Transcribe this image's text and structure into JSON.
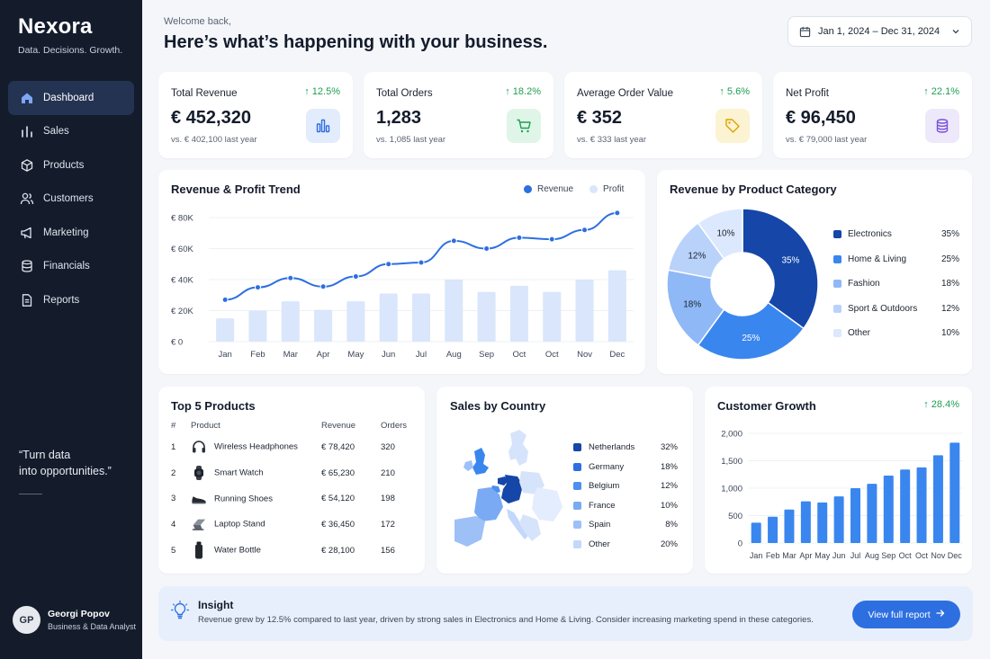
{
  "sidebar": {
    "brand": "Nexora",
    "tagline": "Data. Decisions. Growth.",
    "items": [
      {
        "label": "Dashboard",
        "icon": "home-icon",
        "active": true
      },
      {
        "label": "Sales",
        "icon": "bar-chart-icon"
      },
      {
        "label": "Products",
        "icon": "box-icon"
      },
      {
        "label": "Customers",
        "icon": "users-icon"
      },
      {
        "label": "Marketing",
        "icon": "megaphone-icon"
      },
      {
        "label": "Financials",
        "icon": "database-icon"
      },
      {
        "label": "Reports",
        "icon": "report-icon"
      }
    ],
    "quote_line1": "“Turn data",
    "quote_line2": "into opportunities.”",
    "user": {
      "initials": "GP",
      "name": "Georgi Popov",
      "role": "Business & Data Analyst"
    }
  },
  "header": {
    "welcome": "Welcome back,",
    "headline": "Here’s what’s happening with your business.",
    "date_range": "Jan 1, 2024 – Dec 31, 2024"
  },
  "kpis": [
    {
      "label": "Total Revenue",
      "delta": "↑ 12.5%",
      "value": "€ 452,320",
      "sub": "vs. € 402,100 last year",
      "icon": "bar-chart-icon",
      "icon_color": "#2d6fe0",
      "icon_bg": "#e3ecfc"
    },
    {
      "label": "Total Orders",
      "delta": "↑ 18.2%",
      "value": "1,283",
      "sub": "vs. 1,085 last year",
      "icon": "cart-icon",
      "icon_color": "#1f9d55",
      "icon_bg": "#dff5e8"
    },
    {
      "label": "Average Order Value",
      "delta": "↑ 5.6%",
      "value": "€ 352",
      "sub": "vs. € 333 last year",
      "icon": "tag-icon",
      "icon_color": "#d9a400",
      "icon_bg": "#fcf3d2"
    },
    {
      "label": "Net Profit",
      "delta": "↑ 22.1%",
      "value": "€ 96,450",
      "sub": "vs. € 79,000 last year",
      "icon": "database-icon",
      "icon_color": "#7a52d6",
      "icon_bg": "#eee8fb"
    }
  ],
  "trend": {
    "title": "Revenue & Profit Trend",
    "legend_revenue": "Revenue",
    "legend_profit": "Profit"
  },
  "category": {
    "title": "Revenue by Product Category",
    "items": [
      {
        "name": "Electronics",
        "pct": "35%",
        "color": "#1546a8"
      },
      {
        "name": "Home & Living",
        "pct": "25%",
        "color": "#3a86ef"
      },
      {
        "name": "Fashion",
        "pct": "18%",
        "color": "#8fb8f6"
      },
      {
        "name": "Sport & Outdoors",
        "pct": "12%",
        "color": "#b9d2fa"
      },
      {
        "name": "Other",
        "pct": "10%",
        "color": "#dce8fd"
      }
    ]
  },
  "top_products": {
    "title": "Top 5 Products",
    "headers": [
      "#",
      "Product",
      "Revenue",
      "Orders"
    ],
    "rows": [
      {
        "rank": "1",
        "name": "Wireless Headphones",
        "revenue": "€ 78,420",
        "orders": "320",
        "icon": "headphones-icon"
      },
      {
        "rank": "2",
        "name": "Smart Watch",
        "revenue": "€ 65,230",
        "orders": "210",
        "icon": "watch-icon"
      },
      {
        "rank": "3",
        "name": "Running Shoes",
        "revenue": "€ 54,120",
        "orders": "198",
        "icon": "shoe-icon"
      },
      {
        "rank": "4",
        "name": "Laptop Stand",
        "revenue": "€ 36,450",
        "orders": "172",
        "icon": "laptop-stand-icon"
      },
      {
        "rank": "5",
        "name": "Water Bottle",
        "revenue": "€ 28,100",
        "orders": "156",
        "icon": "bottle-icon"
      }
    ]
  },
  "country": {
    "title": "Sales by Country",
    "items": [
      {
        "name": "Netherlands",
        "pct": "32%",
        "color": "#1546a8"
      },
      {
        "name": "Germany",
        "pct": "18%",
        "color": "#2d6fe0"
      },
      {
        "name": "Belgium",
        "pct": "12%",
        "color": "#4c8ff0"
      },
      {
        "name": "France",
        "pct": "10%",
        "color": "#7aaaf3"
      },
      {
        "name": "Spain",
        "pct": "8%",
        "color": "#9dc0f7"
      },
      {
        "name": "Other",
        "pct": "20%",
        "color": "#c3d8fa"
      }
    ]
  },
  "customer_growth": {
    "title": "Customer Growth",
    "delta": "↑ 28.4%"
  },
  "insight": {
    "title": "Insight",
    "text": "Revenue grew by 12.5% compared to last year, driven by strong sales in Electronics and Home & Living. Consider increasing marketing spend in these categories.",
    "button": "View full report"
  },
  "colors": {
    "accent": "#2d6fe0",
    "positive": "#1f9d55",
    "sidebar_bg": "#141c2c",
    "revenue_line": "#2d6fe0",
    "profit_bar": "#d9e6fb",
    "growth_bar": "#3a86ef"
  },
  "chart_data": [
    {
      "type": "line",
      "title": "Revenue & Profit Trend",
      "categories": [
        "Jan",
        "Feb",
        "Mar",
        "Apr",
        "May",
        "Jun",
        "Jul",
        "Aug",
        "Sep",
        "Oct",
        "Oct",
        "Nov",
        "Dec"
      ],
      "ytick_labels": [
        "€ 0",
        "€ 20K",
        "€ 40K",
        "€ 60K",
        "€ 80K"
      ],
      "ylim": [
        0,
        80000
      ],
      "series": [
        {
          "name": "Revenue",
          "type": "line",
          "values": [
            27000,
            35000,
            41000,
            35500,
            42000,
            50000,
            51000,
            65000,
            60000,
            67000,
            66000,
            72000,
            83000
          ]
        },
        {
          "name": "Profit",
          "type": "bar",
          "values": [
            15000,
            20000,
            26000,
            20500,
            26000,
            31000,
            31000,
            40000,
            32000,
            36000,
            32000,
            40000,
            46000
          ]
        }
      ],
      "grid": true,
      "legend": "top-right"
    },
    {
      "type": "pie",
      "title": "Revenue by Product Category",
      "labels": [
        "Electronics",
        "Home & Living",
        "Fashion",
        "Sport & Outdoors",
        "Other"
      ],
      "values": [
        35,
        25,
        18,
        12,
        10
      ],
      "slice_labels": [
        "35%",
        "25%",
        "18%",
        "12%",
        "10%"
      ],
      "donut": true,
      "legend": "right"
    },
    {
      "type": "bar",
      "title": "Customer Growth",
      "categories": [
        "Jan",
        "Feb",
        "Mar",
        "Apr",
        "May",
        "Jun",
        "Jul",
        "Aug",
        "Sep",
        "Oct",
        "Oct",
        "Nov",
        "Dec"
      ],
      "values": [
        370,
        480,
        610,
        760,
        740,
        850,
        1000,
        1080,
        1230,
        1340,
        1380,
        1600,
        1830
      ],
      "ytick_labels": [
        "0",
        "500",
        "1,000",
        "1,500",
        "2,000"
      ],
      "ylim": [
        0,
        2000
      ],
      "grid": true
    }
  ]
}
